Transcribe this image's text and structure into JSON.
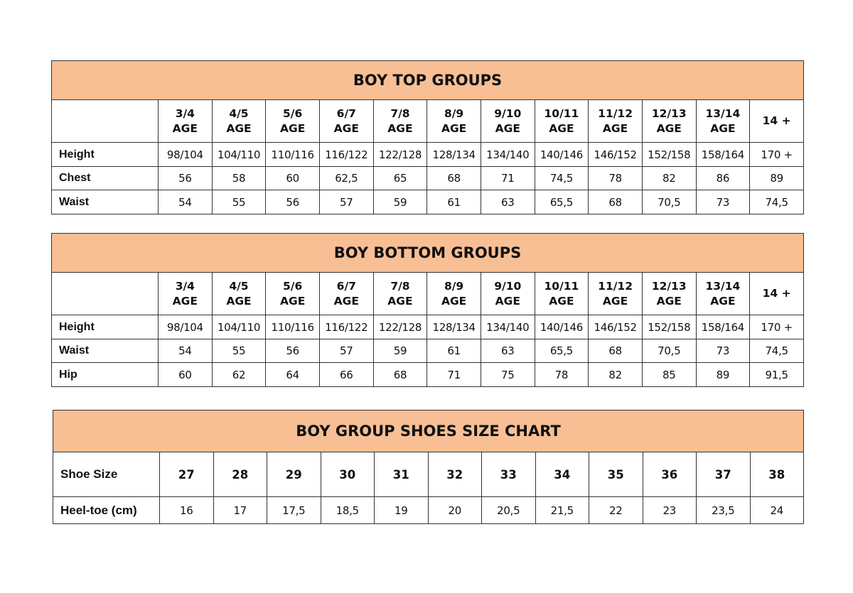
{
  "tables": [
    {
      "title": "BOY TOP GROUPS",
      "headers": [
        [
          "3/4",
          "AGE"
        ],
        [
          "4/5",
          "AGE"
        ],
        [
          "5/6",
          "AGE"
        ],
        [
          "6/7",
          "AGE"
        ],
        [
          "7/8",
          "AGE"
        ],
        [
          "8/9",
          "AGE"
        ],
        [
          "9/10",
          "AGE"
        ],
        [
          "10/11",
          "AGE"
        ],
        [
          "11/12",
          "AGE"
        ],
        [
          "12/13",
          "AGE"
        ],
        [
          "13/14",
          "AGE"
        ],
        [
          "14 +",
          ""
        ]
      ],
      "rows": [
        {
          "label": "Height",
          "values": [
            "98/104",
            "104/110",
            "110/116",
            "116/122",
            "122/128",
            "128/134",
            "134/140",
            "140/146",
            "146/152",
            "152/158",
            "158/164",
            "170 +"
          ]
        },
        {
          "label": "Chest",
          "values": [
            "56",
            "58",
            "60",
            "62,5",
            "65",
            "68",
            "71",
            "74,5",
            "78",
            "82",
            "86",
            "89"
          ]
        },
        {
          "label": "Waist",
          "values": [
            "54",
            "55",
            "56",
            "57",
            "59",
            "61",
            "63",
            "65,5",
            "68",
            "70,5",
            "73",
            "74,5"
          ]
        }
      ]
    },
    {
      "title": "BOY BOTTOM GROUPS",
      "headers": [
        [
          "3/4",
          "AGE"
        ],
        [
          "4/5",
          "AGE"
        ],
        [
          "5/6",
          "AGE"
        ],
        [
          "6/7",
          "AGE"
        ],
        [
          "7/8",
          "AGE"
        ],
        [
          "8/9",
          "AGE"
        ],
        [
          "9/10",
          "AGE"
        ],
        [
          "10/11",
          "AGE"
        ],
        [
          "11/12",
          "AGE"
        ],
        [
          "12/13",
          "AGE"
        ],
        [
          "13/14",
          "AGE"
        ],
        [
          "14 +",
          ""
        ]
      ],
      "rows": [
        {
          "label": "Height",
          "values": [
            "98/104",
            "104/110",
            "110/116",
            "116/122",
            "122/128",
            "128/134",
            "134/140",
            "140/146",
            "146/152",
            "152/158",
            "158/164",
            "170 +"
          ]
        },
        {
          "label": "Waist",
          "values": [
            "54",
            "55",
            "56",
            "57",
            "59",
            "61",
            "63",
            "65,5",
            "68",
            "70,5",
            "73",
            "74,5"
          ]
        },
        {
          "label": "Hip",
          "values": [
            "60",
            "62",
            "64",
            "66",
            "68",
            "71",
            "75",
            "78",
            "82",
            "85",
            "89",
            "91,5"
          ]
        }
      ]
    },
    {
      "title": "BOY GROUP SHOES SIZE CHART",
      "header_label": "Shoe Size",
      "headers": [
        [
          "27"
        ],
        [
          "28"
        ],
        [
          "29"
        ],
        [
          "30"
        ],
        [
          "31"
        ],
        [
          "32"
        ],
        [
          "33"
        ],
        [
          "34"
        ],
        [
          "35"
        ],
        [
          "36"
        ],
        [
          "37"
        ],
        [
          "38"
        ]
      ],
      "rows": [
        {
          "label": "Heel-toe (cm)",
          "values": [
            "16",
            "17",
            "17,5",
            "18,5",
            "19",
            "20",
            "20,5",
            "21,5",
            "22",
            "23",
            "23,5",
            "24"
          ]
        }
      ]
    }
  ],
  "colors": {
    "header_fill": "#f8bf95",
    "border": "#333333"
  }
}
